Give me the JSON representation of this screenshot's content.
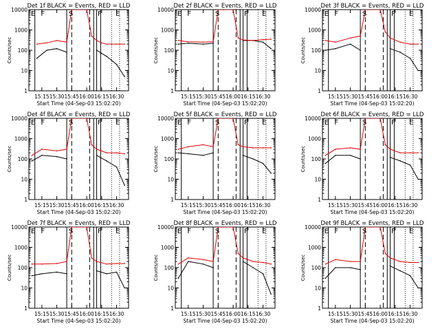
{
  "figure": {
    "ylabel": "Counts/sec",
    "xlabel": "Start Time (04-Sep-03 15:02:20)",
    "x_ticks": [
      "15:15",
      "15:30",
      "15:45",
      "16:00",
      "16:15",
      "16:30"
    ],
    "y_ticks": [
      "1",
      "10",
      "100",
      "1000",
      "10000"
    ],
    "region_labels": [
      "E",
      "F",
      "S",
      "F",
      "E"
    ],
    "colors": {
      "events": "#000000",
      "lld": "#e00000",
      "axes": "#000000",
      "background": "#ffffff"
    }
  },
  "chart_data": [
    {
      "type": "line",
      "title": "Det 1f BLACK = Events, RED = LLD",
      "xlabel": "Start Time (04-Sep-03 15:02:20)",
      "ylabel": "Counts/sec",
      "yscale": "log",
      "ylim": [
        1,
        10000
      ],
      "x": [
        "15:10",
        "15:20",
        "15:30",
        "15:40",
        "15:45",
        "15:50",
        "16:00",
        "16:05",
        "16:10",
        "16:15",
        "16:20",
        "16:30",
        "16:38"
      ],
      "series": [
        {
          "name": "Events",
          "values": [
            40,
            100,
            120,
            80,
            null,
            null,
            null,
            null,
            100,
            70,
            50,
            20,
            5
          ]
        },
        {
          "name": "LLD",
          "values": [
            200,
            230,
            300,
            250,
            10000,
            10000,
            10000,
            500,
            300,
            230,
            200,
            200,
            200
          ]
        }
      ]
    },
    {
      "type": "line",
      "title": "Det 2f BLACK = Events, RED = LLD",
      "xlabel": "Start Time (04-Sep-03 15:02:20)",
      "ylabel": "Counts/sec",
      "yscale": "log",
      "ylim": [
        1,
        10000
      ],
      "x": [
        "15:05",
        "15:15",
        "15:30",
        "15:40",
        "15:45",
        "15:50",
        "16:00",
        "16:05",
        "16:10",
        "16:20",
        "16:30",
        "16:38"
      ],
      "series": [
        {
          "name": "Events",
          "values": [
            200,
            220,
            200,
            220,
            null,
            null,
            null,
            null,
            300,
            300,
            250,
            120
          ]
        },
        {
          "name": "LLD",
          "values": [
            300,
            260,
            250,
            260,
            10000,
            10000,
            10000,
            400,
            320,
            300,
            330,
            350
          ]
        }
      ]
    },
    {
      "type": "line",
      "title": "Det 3f BLACK = Events, RED = LLD",
      "xlabel": "Start Time (04-Sep-03 15:02:20)",
      "ylabel": "Counts/sec",
      "yscale": "log",
      "ylim": [
        1,
        10000
      ],
      "x": [
        "15:05",
        "15:15",
        "15:30",
        "15:40",
        "15:45",
        "15:50",
        "16:00",
        "16:05",
        "16:10",
        "16:20",
        "16:30",
        "16:38"
      ],
      "series": [
        {
          "name": "Events",
          "values": [
            100,
            120,
            200,
            100,
            null,
            null,
            null,
            null,
            120,
            80,
            40,
            10
          ]
        },
        {
          "name": "LLD",
          "values": [
            300,
            250,
            400,
            500,
            10000,
            10000,
            10000,
            800,
            400,
            250,
            200,
            200
          ]
        }
      ]
    },
    {
      "type": "line",
      "title": "Det 4f BLACK = Events, RED = LLD",
      "xlabel": "Start Time (04-Sep-03 15:02:20)",
      "ylabel": "Counts/sec",
      "yscale": "log",
      "ylim": [
        1,
        10000
      ],
      "x": [
        "15:05",
        "15:15",
        "15:30",
        "15:40",
        "15:45",
        "15:50",
        "16:00",
        "16:05",
        "16:10",
        "16:20",
        "16:30",
        "16:38"
      ],
      "series": [
        {
          "name": "Events",
          "values": [
            80,
            150,
            130,
            100,
            null,
            null,
            null,
            null,
            150,
            80,
            40,
            5
          ]
        },
        {
          "name": "LLD",
          "values": [
            150,
            300,
            250,
            300,
            10000,
            10000,
            10000,
            500,
            300,
            200,
            200,
            180
          ]
        }
      ]
    },
    {
      "type": "line",
      "title": "Det 5f BLACK = Events, RED = LLD",
      "xlabel": "Start Time (04-Sep-03 15:02:20)",
      "ylabel": "Counts/sec",
      "yscale": "log",
      "ylim": [
        1,
        10000
      ],
      "x": [
        "15:05",
        "15:15",
        "15:30",
        "15:40",
        "15:45",
        "15:50",
        "16:00",
        "16:05",
        "16:10",
        "16:20",
        "16:30",
        "16:38"
      ],
      "series": [
        {
          "name": "Events",
          "values": [
            200,
            180,
            150,
            200,
            null,
            null,
            null,
            null,
            150,
            100,
            60,
            20
          ]
        },
        {
          "name": "LLD",
          "values": [
            300,
            400,
            500,
            400,
            10000,
            10000,
            10000,
            500,
            400,
            350,
            350,
            350
          ]
        }
      ]
    },
    {
      "type": "line",
      "title": "Det 6f BLACK = Events, RED = LLD",
      "xlabel": "Start Time (04-Sep-03 15:02:20)",
      "ylabel": "Counts/sec",
      "yscale": "log",
      "ylim": [
        1,
        10000
      ],
      "x": [
        "15:05",
        "15:15",
        "15:30",
        "15:40",
        "15:45",
        "15:50",
        "16:00",
        "16:05",
        "16:10",
        "16:20",
        "16:30",
        "16:38"
      ],
      "series": [
        {
          "name": "Events",
          "values": [
            60,
            150,
            150,
            100,
            null,
            null,
            null,
            null,
            120,
            80,
            50,
            10
          ]
        },
        {
          "name": "LLD",
          "values": [
            150,
            300,
            350,
            300,
            10000,
            10000,
            10000,
            500,
            300,
            200,
            200,
            200
          ]
        }
      ]
    },
    {
      "type": "line",
      "title": "Det 7f BLACK = Events, RED = LLD",
      "xlabel": "Start Time (04-Sep-03 15:02:20)",
      "ylabel": "Counts/sec",
      "yscale": "log",
      "ylim": [
        1,
        10000
      ],
      "x": [
        "15:05",
        "15:15",
        "15:30",
        "15:40",
        "15:45",
        "15:50",
        "16:00",
        "16:05",
        "16:10",
        "16:20",
        "16:30",
        "16:38"
      ],
      "series": [
        {
          "name": "Events",
          "values": [
            40,
            50,
            60,
            50,
            null,
            null,
            null,
            null,
            70,
            50,
            60,
            10
          ]
        },
        {
          "name": "LLD",
          "values": [
            150,
            150,
            160,
            200,
            10000,
            10000,
            10000,
            300,
            200,
            150,
            160,
            160
          ]
        }
      ]
    },
    {
      "type": "line",
      "title": "Det 8f BLACK = Events, RED = LLD",
      "xlabel": "Start Time (04-Sep-03 15:02:20)",
      "ylabel": "Counts/sec",
      "yscale": "log",
      "ylim": [
        1,
        10000
      ],
      "x": [
        "15:05",
        "15:15",
        "15:30",
        "15:40",
        "15:45",
        "15:50",
        "16:00",
        "16:05",
        "16:10",
        "16:20",
        "16:30",
        "16:38"
      ],
      "series": [
        {
          "name": "Events",
          "values": [
            30,
            200,
            150,
            100,
            null,
            null,
            null,
            null,
            200,
            100,
            50,
            5
          ]
        },
        {
          "name": "LLD",
          "values": [
            150,
            300,
            250,
            200,
            10000,
            10000,
            10000,
            500,
            300,
            200,
            180,
            150
          ]
        }
      ]
    },
    {
      "type": "line",
      "title": "Det 9f BLACK = Events, RED = LLD",
      "xlabel": "Start Time (04-Sep-03 15:02:20)",
      "ylabel": "Counts/sec",
      "yscale": "log",
      "ylim": [
        1,
        10000
      ],
      "x": [
        "15:05",
        "15:15",
        "15:30",
        "15:40",
        "15:45",
        "15:50",
        "16:00",
        "16:05",
        "16:10",
        "16:20",
        "16:30",
        "16:38"
      ],
      "series": [
        {
          "name": "Events",
          "values": [
            30,
            100,
            100,
            80,
            null,
            null,
            null,
            null,
            120,
            70,
            40,
            10
          ]
        },
        {
          "name": "LLD",
          "values": [
            150,
            250,
            200,
            200,
            10000,
            10000,
            10000,
            500,
            300,
            200,
            180,
            180
          ]
        }
      ]
    }
  ]
}
